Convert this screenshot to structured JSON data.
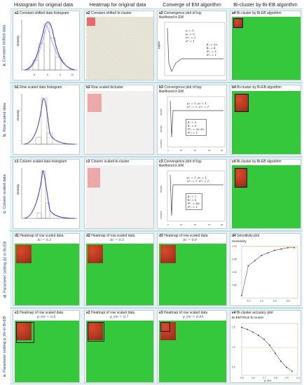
{
  "columns": {
    "c1": "Histogram for original data",
    "c2": "Heatmap for original data",
    "c3": "Converge of EM algorithm",
    "c4": "Bi-cluster by Bi-EB algorithm"
  },
  "rows": {
    "a": {
      "letter": "a.",
      "label": "Constant shifted data"
    },
    "b": {
      "letter": "b.",
      "label": "Row scaled data"
    },
    "c": {
      "letter": "c.",
      "label": "Column scaled data"
    },
    "d": {
      "letter": "d.",
      "label": "Parameter setting Δc in Bi-EB"
    },
    "e": {
      "letter": "e.",
      "label": "Parameter setting p_thr in Bi-EB"
    }
  },
  "panels": {
    "a1": {
      "id": "a1",
      "title": "Constant shifted data histogram",
      "ylabel": "Density"
    },
    "a2": {
      "id": "a2",
      "title": "Constant shifted bi-cluster"
    },
    "a3": {
      "id": "a3",
      "title": "Convergence plot of log-",
      "title2": "likelihood in EM",
      "ylabel": "loglike",
      "legend1": [
        "μ = 5,",
        "μ₀ = 0,",
        "σ²₀ = 1,",
        "σ² = 1"
      ],
      "legend2": [
        "β₁ = 10,",
        "β₀ = 4,",
        "θ²₁ = 1,",
        "θ²₀ = 1"
      ]
    },
    "a4": {
      "id": "a4",
      "title": "Bi-cluster by Bi-EB algorithm"
    },
    "b1": {
      "id": "b1",
      "title": "Row scaled data histogram",
      "ylabel": "Density"
    },
    "b2": {
      "id": "b2",
      "title": "Row scaled bicluster"
    },
    "b3": {
      "id": "b3",
      "title": "Convergence plot of log-",
      "title2": "likelihood in EM",
      "legend1": [
        "μ₁ = 5, μ₀ = 1,",
        "σ²₁ = 1, σ²₀ = 1"
      ],
      "legend2": [
        "β₁ = 5,",
        "β₀ = 0,",
        "θ²₁ = 26.16,",
        "θ²₀ = 1"
      ],
      "yticks": [
        "-400000",
        "-800000",
        "-1200000"
      ],
      "xticks": [
        "0",
        "10",
        "20",
        "30",
        "40"
      ]
    },
    "b4": {
      "id": "b4",
      "title": "Bi-cluster by Bi-EB algorithm"
    },
    "c1": {
      "id": "c1",
      "title": "Column scaled data histogram",
      "ylabel": "Density"
    },
    "c2": {
      "id": "c2",
      "title": "Column scaled bi-cluster"
    },
    "c3": {
      "id": "c3",
      "title": "Convergence plot of log-",
      "title2": "likelihood in EM",
      "legend1": [
        "μ₁ = 5, μ₀ = 1,",
        "σ²₁ = 1, σ²₀ = 1"
      ],
      "legend2": [
        "β₁ = 7,",
        "β₀ = 0,",
        "θ²₁ = 49,",
        "θ²₀ = 1"
      ],
      "yticks": [
        "-500000",
        "-1500000"
      ],
      "xticks": [
        "0",
        "10",
        "20",
        "30",
        "40"
      ]
    },
    "c4": {
      "id": "c4",
      "title": "Bi-cluster by Bi-EB algorithm"
    },
    "d1": {
      "id": "d1",
      "title": "Heatmap of row scaled data",
      "param": "Δc = 0.2"
    },
    "d2": {
      "id": "d2",
      "title": "Heatmap of row scaled data",
      "param": "Δc = 0.5"
    },
    "d3": {
      "id": "d3",
      "title": "Heatmap of row scaled data",
      "param": "Δc = 0.8"
    },
    "d4": {
      "id": "d4",
      "title": "Sensitivity plot",
      "ylabel": "Sensitivity"
    },
    "e1": {
      "id": "e1",
      "title": "Heatmap of row scaled data",
      "param": "p_thr = 0.5"
    },
    "e2": {
      "id": "e2",
      "title": "Heatmap of row scaled data",
      "param": "p_thr = 0.7"
    },
    "e3": {
      "id": "e3",
      "title": "Heatmap of row scaled data",
      "param": "p_thr = 0.95"
    },
    "e4": {
      "id": "e4",
      "title": "Bi-cluster accuracy plot",
      "ylabel": "Bi-EB/TRUE bi-cluster",
      "xlabel": "p_thr"
    }
  },
  "chart_data": [
    {
      "panel": "d4",
      "type": "line",
      "title": "Sensitivity plot",
      "ylabel": "Sensitivity",
      "x": [
        0.1,
        0.2,
        0.3,
        0.4,
        0.5,
        0.6,
        0.7,
        0.8,
        0.9
      ],
      "values": [
        0.81,
        0.925,
        0.945,
        0.965,
        0.975,
        0.985,
        0.99,
        0.995,
        0.995
      ],
      "xticks": [
        "0.2",
        "0.4",
        "0.6",
        "0.8"
      ],
      "yticks": [
        "0.85",
        "0.90",
        "0.95",
        "1.00"
      ],
      "xlim": [
        0.1,
        0.95
      ],
      "ylim": [
        0.8,
        1.0
      ]
    },
    {
      "panel": "e4",
      "type": "line",
      "title": "Bi-cluster accuracy plot",
      "ylabel": "Bi-EB/TRUE bi-cluster",
      "xlabel": "p_thr",
      "x": [
        0.5,
        0.55,
        0.6,
        0.65,
        0.7,
        0.75,
        0.8,
        0.85,
        0.9,
        0.95
      ],
      "values": [
        1.5,
        1.45,
        1.38,
        1.3,
        1.2,
        1.05,
        0.85,
        0.65,
        0.5,
        0.4
      ],
      "xticks": [
        "0.5",
        "0.6",
        "0.7",
        "0.8",
        "0.9",
        "1.0"
      ],
      "yticks": [
        "0.5",
        "1.0",
        "1.5"
      ],
      "xlim": [
        0.5,
        1.0
      ],
      "ylim": [
        0.3,
        1.6
      ]
    }
  ]
}
